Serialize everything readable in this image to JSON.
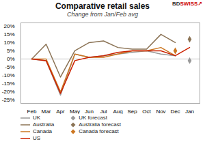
{
  "chart_data": {
    "type": "line",
    "title": "Comparative retail sales",
    "subtitle": "Change from Jan/Feb avg",
    "categories": [
      "Feb",
      "Mar",
      "Apr",
      "May",
      "Jun",
      "Jul",
      "Aug",
      "Sep",
      "Oct",
      "Nov",
      "Dec",
      "Jan"
    ],
    "series": [
      {
        "name": "UK",
        "color": "#999999",
        "values": [
          0,
          -1,
          -22,
          3,
          1,
          2,
          3,
          4,
          5,
          3,
          2,
          null
        ]
      },
      {
        "name": "Australia",
        "color": "#8B7355",
        "values": [
          0,
          9,
          -11,
          5,
          10,
          11,
          7,
          6,
          6,
          15,
          10,
          null
        ]
      },
      {
        "name": "Canada",
        "color": "#CC7722",
        "values": [
          0,
          0,
          -20,
          3,
          1,
          1,
          3,
          5,
          5,
          7,
          2,
          null
        ]
      },
      {
        "name": "US",
        "color": "#CC2200",
        "values": [
          0,
          -1,
          -21,
          -1,
          1,
          2,
          4,
          5,
          5,
          5,
          2,
          7
        ]
      },
      {
        "name": "UK forecast",
        "type": "scatter",
        "marker": "diamond",
        "color": "#999999",
        "values": [
          null,
          null,
          null,
          null,
          null,
          null,
          null,
          null,
          null,
          null,
          null,
          -1
        ]
      },
      {
        "name": "Australia forecast",
        "type": "scatter",
        "marker": "diamond",
        "color": "#8B7355",
        "values": [
          null,
          null,
          null,
          null,
          null,
          null,
          null,
          null,
          null,
          null,
          null,
          12
        ]
      },
      {
        "name": "Canada forecast",
        "type": "scatter",
        "marker": "diamond",
        "color": "#CC7722",
        "values": [
          null,
          null,
          null,
          null,
          null,
          null,
          null,
          null,
          null,
          null,
          5,
          null
        ]
      }
    ],
    "ylim": [
      -27,
      22
    ],
    "yticks": [
      {
        "value": -25,
        "label": "-25%"
      },
      {
        "value": -20,
        "label": "-20%"
      },
      {
        "value": -15,
        "label": "-15%"
      },
      {
        "value": -10,
        "label": "-10%"
      },
      {
        "value": -5,
        "label": "-5%"
      },
      {
        "value": 0,
        "label": "0%"
      },
      {
        "value": 5,
        "label": "5%"
      },
      {
        "value": 10,
        "label": "10%"
      },
      {
        "value": 15,
        "label": "15%"
      },
      {
        "value": 20,
        "label": "20%"
      }
    ],
    "grid": false,
    "legend": "bottom",
    "reference_lines": [
      0
    ],
    "annotations": [
      {
        "text": "BD",
        "color": "#333333"
      },
      {
        "text": "SWISS",
        "color": "#cc0000"
      },
      {
        "text": "↗",
        "color": "#cc0000"
      }
    ]
  }
}
